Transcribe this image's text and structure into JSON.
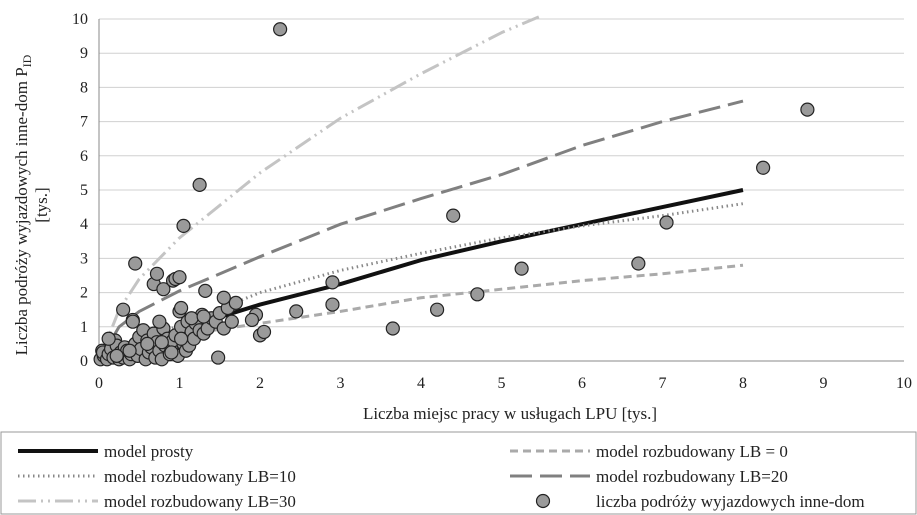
{
  "chart_data": {
    "type": "scatter",
    "xlabel": "Liczba miejsc pracy  w usługach LPU [tys.]",
    "ylabel_main": "Liczba podróży wyjazdowych inne-dom P",
    "ylabel_sub": "ID",
    "ylabel_unit": "[tys.]",
    "xlim": [
      0,
      10
    ],
    "ylim": [
      0,
      10
    ],
    "x_ticks": [
      "0",
      "1",
      "2",
      "3",
      "4",
      "5",
      "6",
      "7",
      "8",
      "9",
      "10"
    ],
    "y_ticks": [
      "0",
      "1",
      "2",
      "3",
      "4",
      "5",
      "6",
      "7",
      "8",
      "9",
      "10"
    ],
    "grid": "horizontal",
    "legend_position": "bottom",
    "series": [
      {
        "name": "model prosty",
        "style": "solid",
        "color": "#111111",
        "x": [
          0,
          1,
          2,
          3,
          4,
          5,
          6,
          7,
          8
        ],
        "y": [
          0,
          0.92,
          1.65,
          2.25,
          2.95,
          3.5,
          4.0,
          4.5,
          5.0
        ]
      },
      {
        "name": "model rozbudowany LB = 0",
        "style": "short-dash",
        "color": "#aaaaaa",
        "x": [
          0,
          0.5,
          1,
          2,
          3,
          4,
          5,
          6,
          7,
          8
        ],
        "y": [
          0,
          0.5,
          0.75,
          1.1,
          1.45,
          1.85,
          2.1,
          2.35,
          2.55,
          2.8
        ]
      },
      {
        "name": "model rozbudowany LB=10",
        "style": "dotted",
        "color": "#888888",
        "x": [
          0,
          1,
          2,
          3,
          4,
          5,
          6,
          7,
          8
        ],
        "y": [
          0,
          1.05,
          2.0,
          2.65,
          3.15,
          3.6,
          3.95,
          4.25,
          4.6
        ]
      },
      {
        "name": "model rozbudowany LB=20",
        "style": "long-dash",
        "color": "#808080",
        "x": [
          0,
          0.25,
          0.5,
          1,
          2,
          3,
          4,
          5,
          6,
          7,
          8
        ],
        "y": [
          0,
          1.0,
          1.45,
          2.05,
          3.05,
          4.0,
          4.75,
          5.45,
          6.3,
          7.0,
          7.6
        ]
      },
      {
        "name": "model rozbudowany LB=30",
        "style": "dash-dot-dot",
        "color": "#c4c4c4",
        "x": [
          0,
          0.25,
          0.5,
          1,
          2,
          3,
          4,
          5,
          5.5
        ],
        "y": [
          0,
          1.5,
          2.4,
          3.6,
          5.5,
          7.1,
          8.4,
          9.6,
          10.1
        ]
      },
      {
        "name": "liczba podróży wyjazdowych inne-dom",
        "style": "marker",
        "color": "#9a9a9a",
        "x": [
          0.02,
          0.04,
          0.06,
          0.05,
          0.1,
          0.12,
          0.15,
          0.18,
          0.2,
          0.22,
          0.25,
          0.27,
          0.3,
          0.32,
          0.35,
          0.38,
          0.4,
          0.42,
          0.45,
          0.48,
          0.5,
          0.52,
          0.55,
          0.58,
          0.6,
          0.62,
          0.65,
          0.68,
          0.7,
          0.72,
          0.75,
          0.78,
          0.8,
          0.82,
          0.85,
          0.88,
          0.9,
          0.92,
          0.95,
          0.98,
          1.0,
          1.02,
          1.05,
          1.08,
          1.1,
          1.12,
          1.15,
          1.18,
          1.2,
          1.25,
          1.28,
          1.3,
          1.35,
          1.4,
          1.45,
          1.5,
          1.55,
          1.6,
          1.65,
          1.7,
          1.95,
          2.0,
          2.05,
          2.45,
          2.9,
          0.12,
          0.22,
          0.3,
          0.38,
          0.42,
          0.45,
          0.68,
          0.72,
          0.75,
          0.8,
          0.92,
          0.95,
          1.0,
          1.02,
          1.05,
          1.15,
          1.3,
          1.32,
          1.02,
          2.25,
          2.9,
          3.65,
          4.2,
          4.4,
          4.7,
          5.25,
          6.7,
          7.05,
          8.25,
          8.8,
          0.6,
          0.78,
          0.9,
          1.25,
          1.9,
          1.55,
          1.48
        ],
        "y": [
          0.05,
          0.3,
          0.15,
          0.25,
          0.05,
          0.2,
          0.35,
          0.1,
          0.6,
          0.45,
          0.05,
          0.25,
          0.1,
          0.4,
          0.3,
          0.05,
          0.2,
          1.2,
          0.5,
          0.15,
          0.7,
          0.35,
          0.9,
          0.05,
          0.6,
          0.25,
          0.4,
          0.8,
          0.1,
          0.55,
          0.3,
          0.05,
          0.95,
          0.45,
          0.65,
          0.2,
          0.35,
          0.6,
          0.75,
          0.15,
          1.45,
          1.0,
          0.5,
          0.3,
          1.15,
          0.45,
          0.85,
          0.65,
          1.1,
          0.9,
          1.35,
          0.8,
          0.95,
          1.25,
          1.15,
          1.4,
          0.95,
          1.55,
          1.15,
          1.7,
          1.35,
          0.75,
          0.85,
          1.45,
          1.65,
          0.65,
          0.15,
          1.5,
          0.3,
          1.15,
          2.85,
          2.25,
          2.55,
          1.15,
          2.1,
          2.35,
          2.4,
          2.45,
          1.55,
          3.95,
          1.25,
          1.3,
          2.05,
          0.65,
          9.7,
          2.3,
          0.95,
          1.5,
          4.25,
          1.95,
          2.7,
          2.85,
          4.05,
          5.65,
          7.35,
          0.5,
          0.55,
          0.25,
          5.15,
          1.2,
          1.85,
          0.1
        ]
      }
    ]
  }
}
